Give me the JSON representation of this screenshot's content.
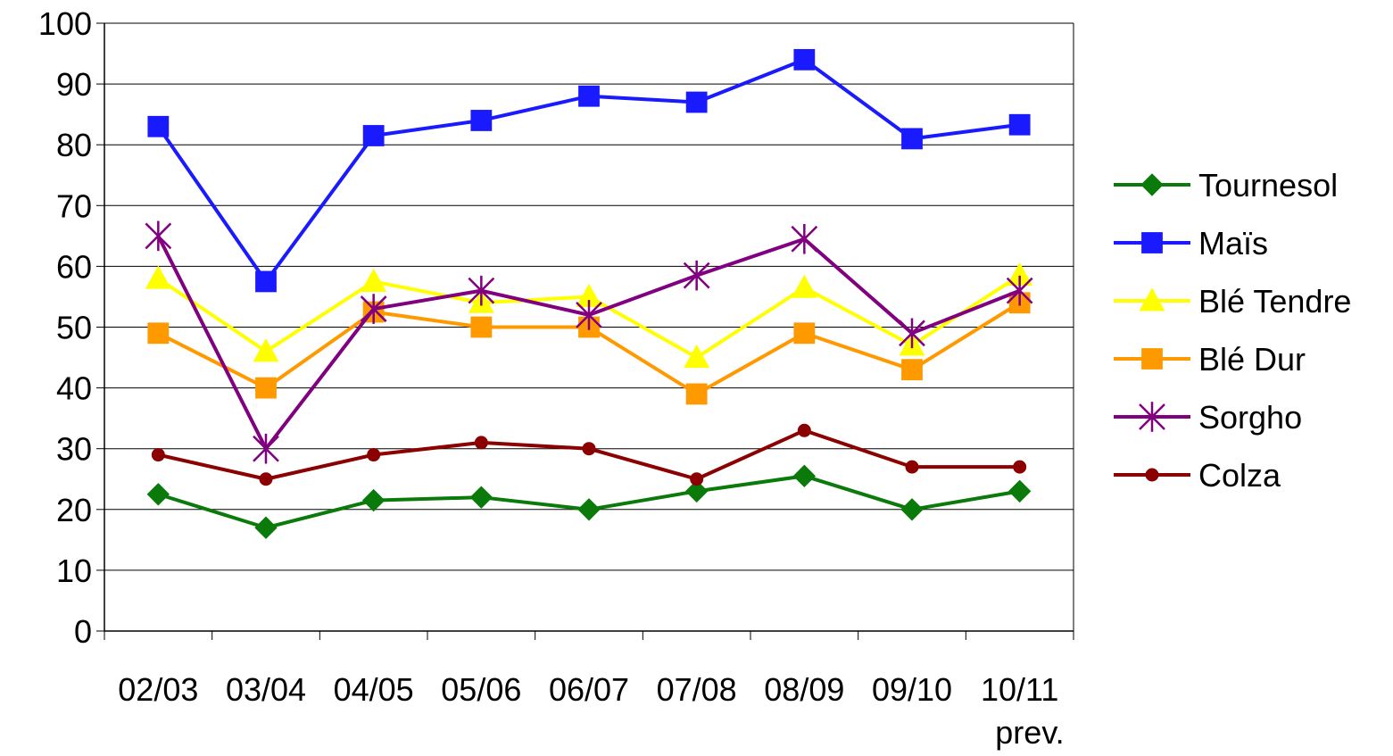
{
  "chart_data": {
    "type": "line",
    "title": "",
    "xlabel": "",
    "ylabel": "",
    "categories": [
      [
        "02/03"
      ],
      [
        "03/04"
      ],
      [
        "04/05"
      ],
      [
        "05/06"
      ],
      [
        "06/07"
      ],
      [
        "07/08"
      ],
      [
        "08/09"
      ],
      [
        "09/10"
      ],
      [
        "10/11",
        "prev."
      ]
    ],
    "ylim": [
      0,
      100
    ],
    "yticks": [
      0,
      10,
      20,
      30,
      40,
      50,
      60,
      70,
      80,
      90,
      100
    ],
    "grid": "horizontal",
    "legend_position": "right",
    "series": [
      {
        "name": "Tournesol",
        "color": "#0a7a0a",
        "marker": "diamond",
        "values": [
          22.5,
          17,
          21.5,
          22,
          20,
          23,
          25.5,
          20,
          23
        ]
      },
      {
        "name": "Maïs",
        "color": "#1a1aff",
        "marker": "square",
        "values": [
          83,
          57.5,
          81.5,
          84,
          88,
          87,
          94,
          81,
          83.3
        ]
      },
      {
        "name": "Blé Tendre",
        "color": "#ffff00",
        "marker": "triangle",
        "values": [
          58,
          46,
          57.5,
          54,
          55,
          45,
          56.5,
          47,
          58.5
        ]
      },
      {
        "name": "Blé Dur",
        "color": "#ff9900",
        "marker": "square",
        "values": [
          49,
          40,
          52.5,
          50,
          50,
          39,
          49,
          43,
          54
        ]
      },
      {
        "name": "Sorgho",
        "color": "#800080",
        "marker": "star",
        "values": [
          65,
          30,
          53,
          56,
          52,
          58.5,
          64.5,
          49,
          56
        ]
      },
      {
        "name": "Colza",
        "color": "#8b0000",
        "marker": "circle",
        "values": [
          29,
          25,
          29,
          31,
          30,
          25,
          33,
          27,
          27
        ]
      }
    ]
  }
}
